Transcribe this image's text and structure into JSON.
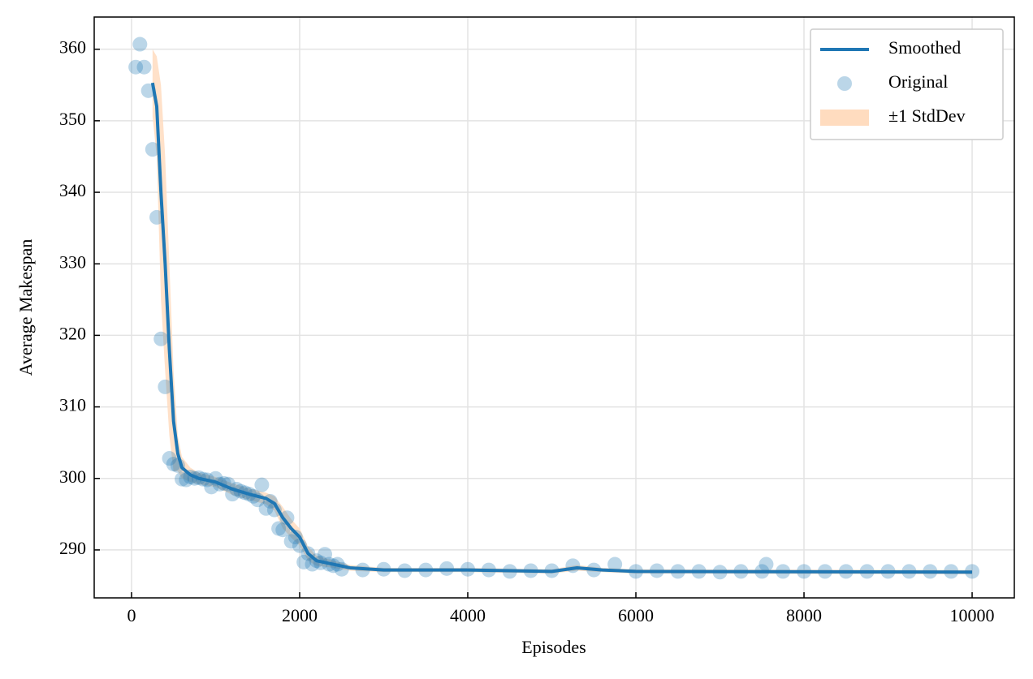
{
  "chart_data": {
    "type": "line",
    "xlabel": "Episodes",
    "ylabel": "Average Makespan",
    "xlim": [
      -444,
      10502
    ],
    "ylim": [
      283.3,
      364.5
    ],
    "xticks": [
      0,
      2000,
      4000,
      6000,
      8000,
      10000
    ],
    "yticks": [
      290,
      300,
      310,
      320,
      330,
      340,
      350,
      360
    ],
    "grid": true,
    "legend": "upper right",
    "series": [
      {
        "name": "Smoothed",
        "type": "line",
        "color": "#1f77b4",
        "x": [
          250,
          300,
          350,
          400,
          450,
          500,
          550,
          600,
          700,
          800,
          1000,
          1200,
          1400,
          1600,
          1700,
          1800,
          1900,
          2000,
          2100,
          2200,
          2400,
          2600,
          3000,
          4000,
          5000,
          5300,
          5600,
          6000,
          10000
        ],
        "values": [
          355.3,
          352,
          340,
          330,
          318,
          308,
          303.5,
          301.5,
          300.5,
          300,
          299.5,
          298.5,
          297.8,
          297.2,
          296.5,
          294.5,
          293,
          291.8,
          289.5,
          288.5,
          288,
          287.5,
          287.2,
          287.2,
          287,
          287.5,
          287.2,
          287,
          286.9
        ]
      },
      {
        "name": "Original",
        "type": "scatter",
        "color": "#1f77b4",
        "x": [
          50,
          100,
          150,
          200,
          250,
          300,
          350,
          400,
          450,
          500,
          550,
          600,
          650,
          700,
          750,
          800,
          850,
          900,
          950,
          1000,
          1050,
          1100,
          1150,
          1200,
          1250,
          1300,
          1350,
          1400,
          1450,
          1500,
          1550,
          1600,
          1650,
          1700,
          1750,
          1800,
          1850,
          1900,
          1950,
          2000,
          2050,
          2100,
          2150,
          2200,
          2250,
          2300,
          2350,
          2400,
          2450,
          2500,
          2750,
          3000,
          3250,
          3500,
          3750,
          4000,
          4250,
          4500,
          4750,
          5000,
          5250,
          5500,
          5750,
          6000,
          6250,
          6500,
          6750,
          7000,
          7250,
          7500,
          7550,
          7750,
          8000,
          8250,
          8500,
          8750,
          9000,
          9250,
          9500,
          9750,
          10000
        ],
        "values": [
          357.5,
          360.7,
          357.5,
          354.2,
          346,
          336.5,
          319.5,
          312.8,
          302.8,
          302,
          301.8,
          299.9,
          299.8,
          300.2,
          300,
          300.1,
          299.9,
          299.8,
          298.8,
          300,
          299.2,
          299.3,
          299.2,
          297.8,
          298.5,
          298.2,
          298,
          297.8,
          297.5,
          297,
          299.1,
          295.8,
          296.8,
          295.6,
          293,
          292.8,
          294.5,
          291.2,
          291.8,
          290.6,
          288.3,
          289.5,
          288,
          288.5,
          288.2,
          289.4,
          288,
          287.8,
          288,
          287.3,
          287.2,
          287.3,
          287.1,
          287.2,
          287.4,
          287.3,
          287.2,
          287,
          287.1,
          287.1,
          287.8,
          287.2,
          288,
          287,
          287.1,
          287,
          287,
          286.9,
          287,
          287,
          288,
          287,
          287,
          287,
          287,
          287,
          287,
          287,
          287,
          287,
          287
        ]
      },
      {
        "name": "±1 StdDev",
        "type": "band",
        "color": "#ffdcbf",
        "x": [
          250,
          300,
          350,
          400,
          450,
          500,
          550,
          600,
          700,
          800,
          1000,
          1200,
          1400,
          1600,
          1700,
          1800,
          1900,
          2000,
          2100,
          2200,
          2400,
          2600,
          3000,
          4000,
          5000,
          5300,
          5600,
          6000,
          10000
        ],
        "upper": [
          360,
          359,
          355,
          345,
          330,
          315,
          306,
          303,
          301.5,
          300.8,
          300.2,
          299.3,
          298.6,
          298,
          297.5,
          296,
          294.3,
          293,
          290.5,
          289.2,
          288.5,
          287.9,
          287.5,
          287.5,
          287.3,
          287.9,
          287.5,
          287.3,
          287.2
        ],
        "lower": [
          350.6,
          345,
          325,
          315,
          306,
          301,
          301,
          300,
          299.5,
          299.2,
          298.8,
          297.7,
          297,
          296.4,
          295.5,
          293,
          291.7,
          290.6,
          288.5,
          287.8,
          287.5,
          287.1,
          286.9,
          286.9,
          286.7,
          287.1,
          286.9,
          286.7,
          286.6
        ]
      }
    ]
  }
}
